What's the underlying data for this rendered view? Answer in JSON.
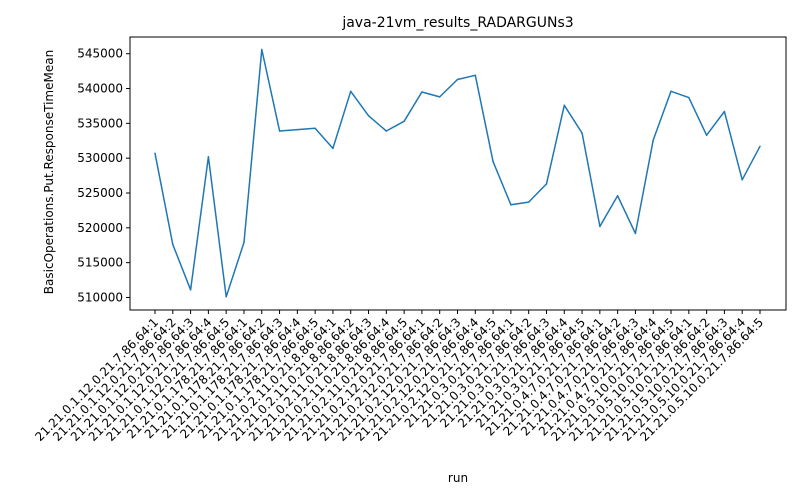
{
  "chart_data": {
    "type": "line",
    "title": "java-21vm_results_RADARGUNs3",
    "xlabel": "run",
    "ylabel": "BasicOperations.Put.ResponseTimeMean",
    "ylim": [
      508200,
      547400
    ],
    "yticks": [
      510000,
      515000,
      520000,
      525000,
      530000,
      535000,
      540000,
      545000
    ],
    "grid": false,
    "legend": "none",
    "color": "#1f77b4",
    "x": [
      "21.21.0.1.12.0.21.7.86.64:1",
      "21.21.0.1.12.0.21.7.86.64:2",
      "21.21.0.1.12.0.21.7.86.64:3",
      "21.21.0.1.12.0.21.7.86.64:4",
      "21.21.0.1.12.0.21.7.86.64:5",
      "21.21.0.1.178.21.7.86.64:1",
      "21.21.0.1.178.21.7.86.64:2",
      "21.21.0.1.178.21.7.86.64:3",
      "21.21.0.1.178.21.7.86.64:4",
      "21.21.0.1.178.21.7.86.64:5",
      "21.21.0.2.11.0.21.8.86.64:1",
      "21.21.0.2.11.0.21.8.86.64:2",
      "21.21.0.2.11.0.21.8.86.64:3",
      "21.21.0.2.11.0.21.8.86.64:4",
      "21.21.0.2.11.0.21.8.86.64:5",
      "21.21.0.2.12.0.21.7.86.64:1",
      "21.21.0.2.12.0.21.7.86.64:2",
      "21.21.0.2.12.0.21.7.86.64:3",
      "21.21.0.2.12.0.21.7.86.64:4",
      "21.21.0.2.12.0.21.7.86.64:5",
      "21.21.0.3.0.21.7.86.64:1",
      "21.21.0.3.0.21.7.86.64:2",
      "21.21.0.3.0.21.7.86.64:3",
      "21.21.0.3.0.21.7.86.64:4",
      "21.21.0.3.0.21.7.86.64:5",
      "21.21.0.4.7.0.21.7.86.64:1",
      "21.21.0.4.7.0.21.7.86.64:2",
      "21.21.0.4.7.0.21.7.86.64:3",
      "21.21.0.4.7.0.21.7.86.64:4",
      "21.21.0.5.10.0.21.7.86.64:5",
      "21.21.0.5.10.0.21.7.86.64:1",
      "21.21.0.5.10.0.21.7.86.64:2",
      "21.21.0.5.10.0.21.7.86.64:3",
      "21.21.0.5.10.0.21.7.86.64:4",
      "21.21.0.5.10.0.21.7.86.64:5"
    ],
    "values": [
      530700,
      517600,
      511100,
      530200,
      510100,
      517900,
      545600,
      533900,
      534100,
      534300,
      531400,
      539600,
      536100,
      533900,
      535300,
      539500,
      538800,
      541300,
      541900,
      529500,
      523300,
      523700,
      526300,
      537600,
      533600,
      520200,
      524600,
      519200,
      532600,
      539600,
      538700,
      533300,
      536700,
      526900,
      531700
    ]
  }
}
